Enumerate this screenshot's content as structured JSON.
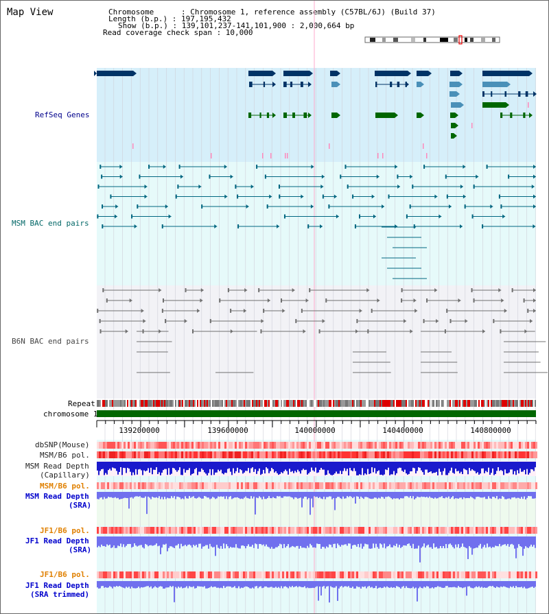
{
  "header": {
    "view_title": "Map View",
    "chromosome_line": "Chromosome      : Chromosome 1, reference assembly (C57BL/6J) (Build 37)",
    "length_line": "Length (b.p.) : 197,195,432",
    "show_line": "Show (b.p.) : 139,101,237-141,101,900 : 2,000,664 bp",
    "coverage_line": "Read coverage check span : 10,000"
  },
  "tracks": {
    "refseq": "RefSeq Genes",
    "msm_bac": "MSM BAC end pairs",
    "b6n_bac": "B6N BAC end pairs",
    "repeat": "Repeat",
    "chromosome": "chromosome 1",
    "dbsnp": "dbSNP(Mouse)",
    "msm_b6_pol": "MSM/B6 pol.",
    "msm_read_depth_cap_1": "MSM Read Depth",
    "msm_read_depth_cap_2": "(Capillary)",
    "msm_b6_pol_2": "MSM/B6 pol.",
    "msm_read_depth_sra_1": "MSM Read Depth",
    "msm_read_depth_sra_2": "(SRA)",
    "jf1_b6_pol": "JF1/B6 pol.",
    "jf1_read_depth_sra_1": "JF1 Read Depth",
    "jf1_read_depth_sra_2": "(SRA)",
    "jf1_b6_pol_2": "JF1/B6 pol.",
    "jf1_read_depth_trim_1": "JF1 Read Depth",
    "jf1_read_depth_trim_2": "(SRA trimmed)"
  },
  "ruler": {
    "ticks": [
      "139200000",
      "139600000",
      "140000000",
      "140400000",
      "140800000"
    ]
  },
  "colors": {
    "refseq_bg": "#d6effa",
    "msm_bg": "#e6fafa",
    "b6n_bg": "#f2f2f6",
    "lower_bg": "#e6fafa",
    "gene_navy": "#003366",
    "gene_blue": "#4a90b8",
    "gene_green": "#006600",
    "bac_teal": "#006680",
    "bac_grey": "#707070",
    "chromosome_green": "#006600",
    "depth_blue": "#1a1acc",
    "depth_light": "#7070ee"
  }
}
